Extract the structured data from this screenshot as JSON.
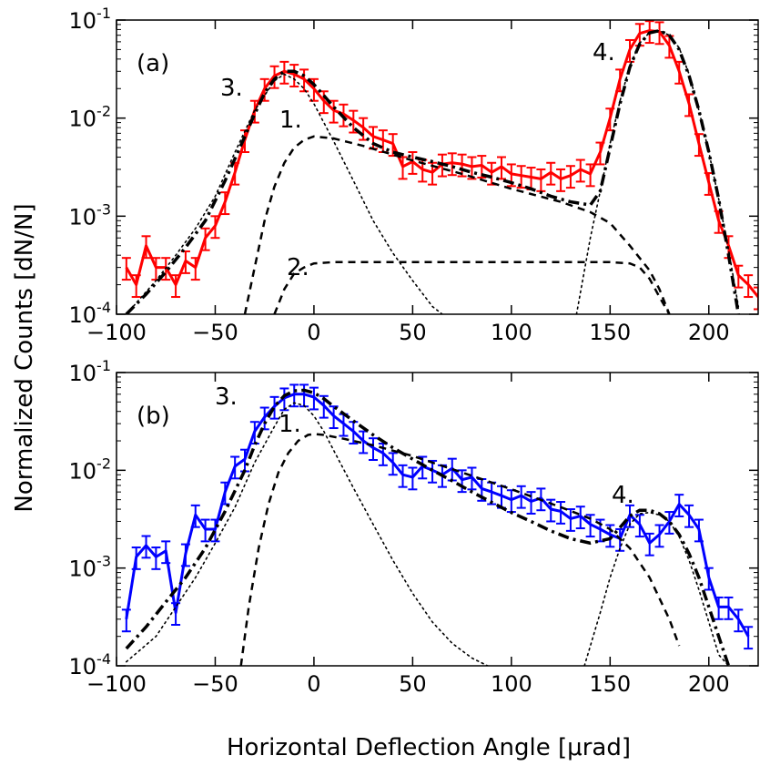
{
  "figure": {
    "ylabel": "Normalized Counts [dN/N]",
    "xlabel": "Horizontal Deflection Angle [μrad]",
    "x_tick_labels": [
      "−100",
      "−50",
      "0",
      "50",
      "100",
      "150",
      "200"
    ],
    "y_tick_labels": [
      {
        "base": "10",
        "exp": "-1"
      },
      {
        "base": "10",
        "exp": "-2"
      },
      {
        "base": "10",
        "exp": "-3"
      },
      {
        "base": "10",
        "exp": "-4"
      }
    ]
  },
  "chart_data": [
    {
      "type": "line",
      "panel_label": "(a)",
      "xlim": [
        -100,
        225
      ],
      "ylim": [
        0.0001,
        0.1
      ],
      "yscale": "log",
      "grid": false,
      "series": [
        {
          "kind": "measured",
          "color": "#ff0000",
          "x": [
            -95,
            -90,
            -85,
            -80,
            -75,
            -70,
            -65,
            -60,
            -55,
            -50,
            -45,
            -40,
            -35,
            -30,
            -25,
            -20,
            -15,
            -10,
            -5,
            0,
            5,
            10,
            15,
            20,
            25,
            30,
            35,
            40,
            45,
            50,
            55,
            60,
            65,
            70,
            75,
            80,
            85,
            90,
            95,
            100,
            105,
            110,
            115,
            120,
            125,
            130,
            135,
            140,
            145,
            150,
            155,
            160,
            165,
            170,
            175,
            180,
            185,
            190,
            195,
            200,
            205,
            210,
            215,
            220,
            225
          ],
          "y": [
            0.0003,
            0.0002,
            0.0005,
            0.0003,
            0.0003,
            0.0002,
            0.00035,
            0.0003,
            0.0006,
            0.0008,
            0.0014,
            0.0028,
            0.006,
            0.012,
            0.02,
            0.027,
            0.03,
            0.028,
            0.025,
            0.02,
            0.015,
            0.012,
            0.011,
            0.0095,
            0.008,
            0.0065,
            0.006,
            0.0055,
            0.0032,
            0.0036,
            0.003,
            0.0028,
            0.0034,
            0.0035,
            0.0034,
            0.0032,
            0.0033,
            0.0028,
            0.0032,
            0.0027,
            0.0026,
            0.0025,
            0.0024,
            0.0028,
            0.0024,
            0.0026,
            0.003,
            0.0027,
            0.0045,
            0.01,
            0.025,
            0.05,
            0.073,
            0.078,
            0.076,
            0.055,
            0.03,
            0.014,
            0.0055,
            0.0022,
            0.0009,
            0.0005,
            0.00025,
            0.0002,
            0.00015
          ],
          "y_err_frac": 0.25
        },
        {
          "kind": "fit-component",
          "label": "1.",
          "style": "dashed",
          "x": [
            -35,
            -30,
            -25,
            -20,
            -15,
            -10,
            -5,
            0,
            10,
            25,
            50,
            75,
            100,
            125,
            140,
            150,
            160,
            170,
            175,
            180
          ],
          "y": [
            0.0001,
            0.0003,
            0.0009,
            0.002,
            0.0035,
            0.005,
            0.006,
            0.0065,
            0.0062,
            0.0052,
            0.0037,
            0.0027,
            0.0019,
            0.0014,
            0.0011,
            0.00085,
            0.0005,
            0.00028,
            0.00018,
            0.0001
          ]
        },
        {
          "kind": "fit-component",
          "label": "2.",
          "style": "dashed",
          "x": [
            -20,
            -15,
            -10,
            -5,
            0,
            10,
            25,
            50,
            100,
            150,
            160,
            165,
            170,
            175,
            180
          ],
          "y": [
            0.0001,
            0.00018,
            0.00026,
            0.0003,
            0.00033,
            0.00034,
            0.00034,
            0.00034,
            0.00034,
            0.00034,
            0.00033,
            0.0003,
            0.00023,
            0.00015,
            0.0001
          ]
        },
        {
          "kind": "fit-component",
          "label": "3.",
          "style": "dotted",
          "x": [
            -95,
            -80,
            -70,
            -60,
            -50,
            -40,
            -30,
            -20,
            -15,
            -10,
            -5,
            0,
            5,
            10,
            20,
            30,
            40,
            50,
            60,
            65
          ],
          "y": [
            0.0001,
            0.00022,
            0.0004,
            0.00075,
            0.0016,
            0.0045,
            0.012,
            0.024,
            0.028,
            0.025,
            0.02,
            0.014,
            0.009,
            0.0058,
            0.0023,
            0.0009,
            0.00042,
            0.00022,
            0.00012,
            0.0001
          ]
        },
        {
          "kind": "fit-component",
          "label": "4.",
          "style": "dotted",
          "x": [
            133,
            140,
            145,
            150,
            155,
            160,
            165,
            170,
            175,
            180,
            185,
            190,
            195,
            200,
            205,
            210,
            215
          ],
          "y": [
            0.0001,
            0.0006,
            0.0018,
            0.0055,
            0.015,
            0.034,
            0.058,
            0.075,
            0.078,
            0.07,
            0.052,
            0.028,
            0.012,
            0.0045,
            0.0015,
            0.00045,
            0.00012
          ]
        },
        {
          "kind": "total-fit",
          "style": "dash-dot",
          "x": [
            -95,
            -85,
            -75,
            -65,
            -55,
            -45,
            -35,
            -30,
            -25,
            -20,
            -15,
            -10,
            -5,
            0,
            5,
            10,
            20,
            30,
            40,
            50,
            60,
            70,
            80,
            90,
            100,
            110,
            120,
            130,
            140,
            145,
            150,
            155,
            160,
            165,
            170,
            175,
            180,
            185,
            190,
            195,
            200,
            205,
            210,
            215
          ],
          "y": [
            0.0001,
            0.00016,
            0.00027,
            0.00048,
            0.0009,
            0.0023,
            0.0065,
            0.011,
            0.018,
            0.025,
            0.03,
            0.03,
            0.027,
            0.022,
            0.017,
            0.013,
            0.008,
            0.0055,
            0.0045,
            0.004,
            0.0036,
            0.0032,
            0.0028,
            0.0025,
            0.0022,
            0.0019,
            0.0016,
            0.0014,
            0.0013,
            0.0018,
            0.005,
            0.014,
            0.033,
            0.057,
            0.074,
            0.078,
            0.07,
            0.05,
            0.027,
            0.012,
            0.0045,
            0.0015,
            0.0004,
            0.0001
          ]
        }
      ]
    },
    {
      "type": "line",
      "panel_label": "(b)",
      "xlim": [
        -100,
        225
      ],
      "ylim": [
        0.0001,
        0.1
      ],
      "yscale": "log",
      "grid": false,
      "series": [
        {
          "kind": "measured",
          "color": "#0000ff",
          "x": [
            -95,
            -90,
            -85,
            -80,
            -75,
            -70,
            -65,
            -60,
            -55,
            -50,
            -45,
            -40,
            -35,
            -30,
            -25,
            -20,
            -15,
            -10,
            -5,
            0,
            5,
            10,
            15,
            20,
            25,
            30,
            35,
            40,
            45,
            50,
            55,
            60,
            65,
            70,
            75,
            80,
            85,
            90,
            95,
            100,
            105,
            110,
            115,
            120,
            125,
            130,
            135,
            140,
            145,
            150,
            155,
            160,
            165,
            170,
            175,
            180,
            185,
            190,
            195,
            200,
            205,
            210,
            215,
            220
          ],
          "y": [
            0.0003,
            0.0013,
            0.0017,
            0.0013,
            0.0015,
            0.00035,
            0.0014,
            0.0035,
            0.0025,
            0.0025,
            0.006,
            0.011,
            0.013,
            0.025,
            0.035,
            0.045,
            0.055,
            0.06,
            0.06,
            0.056,
            0.046,
            0.036,
            0.03,
            0.025,
            0.02,
            0.017,
            0.015,
            0.012,
            0.009,
            0.0085,
            0.011,
            0.01,
            0.009,
            0.0105,
            0.008,
            0.0085,
            0.0065,
            0.006,
            0.0055,
            0.005,
            0.0055,
            0.0048,
            0.0052,
            0.004,
            0.0038,
            0.0032,
            0.0034,
            0.0028,
            0.0025,
            0.0022,
            0.002,
            0.0035,
            0.0028,
            0.0018,
            0.0022,
            0.003,
            0.0045,
            0.0035,
            0.0025,
            0.0008,
            0.0004,
            0.0004,
            0.0003,
            0.0002
          ],
          "y_err_frac": 0.25
        },
        {
          "kind": "fit-component",
          "label": "1.",
          "style": "dashed",
          "x": [
            -37,
            -33,
            -28,
            -23,
            -18,
            -13,
            -8,
            -3,
            0,
            5,
            15,
            30,
            50,
            75,
            100,
            125,
            140,
            150,
            160,
            170,
            180,
            185
          ],
          "y": [
            0.0001,
            0.0004,
            0.0016,
            0.0045,
            0.0095,
            0.015,
            0.02,
            0.023,
            0.0235,
            0.023,
            0.021,
            0.018,
            0.014,
            0.0095,
            0.0064,
            0.0042,
            0.0032,
            0.0025,
            0.0016,
            0.0008,
            0.0003,
            0.00016
          ]
        },
        {
          "kind": "fit-component",
          "label": "3.",
          "style": "dotted",
          "x": [
            -95,
            -80,
            -70,
            -60,
            -50,
            -40,
            -30,
            -20,
            -15,
            -10,
            -5,
            0,
            5,
            10,
            20,
            30,
            40,
            50,
            60,
            70,
            80,
            88
          ],
          "y": [
            0.00011,
            0.0002,
            0.0004,
            0.0008,
            0.0018,
            0.0042,
            0.012,
            0.028,
            0.042,
            0.049,
            0.046,
            0.036,
            0.025,
            0.016,
            0.0066,
            0.0028,
            0.0012,
            0.00055,
            0.00028,
            0.00017,
            0.00012,
            0.0001
          ]
        },
        {
          "kind": "fit-component",
          "label": "4.",
          "style": "dotted",
          "x": [
            137,
            145,
            150,
            155,
            160,
            165,
            170,
            175,
            180,
            185,
            190,
            195,
            200,
            205,
            210
          ],
          "y": [
            0.0001,
            0.00035,
            0.0008,
            0.0016,
            0.0028,
            0.0036,
            0.0037,
            0.0035,
            0.003,
            0.0021,
            0.0012,
            0.0006,
            0.00028,
            0.00013,
            0.0001
          ]
        },
        {
          "kind": "total-fit",
          "style": "dash-dot",
          "x": [
            -95,
            -85,
            -75,
            -65,
            -55,
            -45,
            -35,
            -30,
            -25,
            -20,
            -15,
            -10,
            -5,
            0,
            5,
            10,
            20,
            30,
            40,
            50,
            60,
            70,
            80,
            90,
            100,
            110,
            120,
            130,
            140,
            150,
            155,
            160,
            165,
            170,
            175,
            180,
            185,
            190,
            195,
            200,
            205,
            210
          ],
          "y": [
            0.00015,
            0.00025,
            0.00045,
            0.0008,
            0.0016,
            0.0038,
            0.01,
            0.018,
            0.03,
            0.045,
            0.058,
            0.065,
            0.066,
            0.062,
            0.054,
            0.045,
            0.032,
            0.023,
            0.017,
            0.013,
            0.01,
            0.0078,
            0.006,
            0.0047,
            0.0037,
            0.003,
            0.0024,
            0.002,
            0.0018,
            0.002,
            0.0026,
            0.0034,
            0.0039,
            0.0039,
            0.0036,
            0.003,
            0.0022,
            0.0014,
            0.0008,
            0.0004,
            0.0002,
            0.0001
          ]
        }
      ]
    }
  ]
}
